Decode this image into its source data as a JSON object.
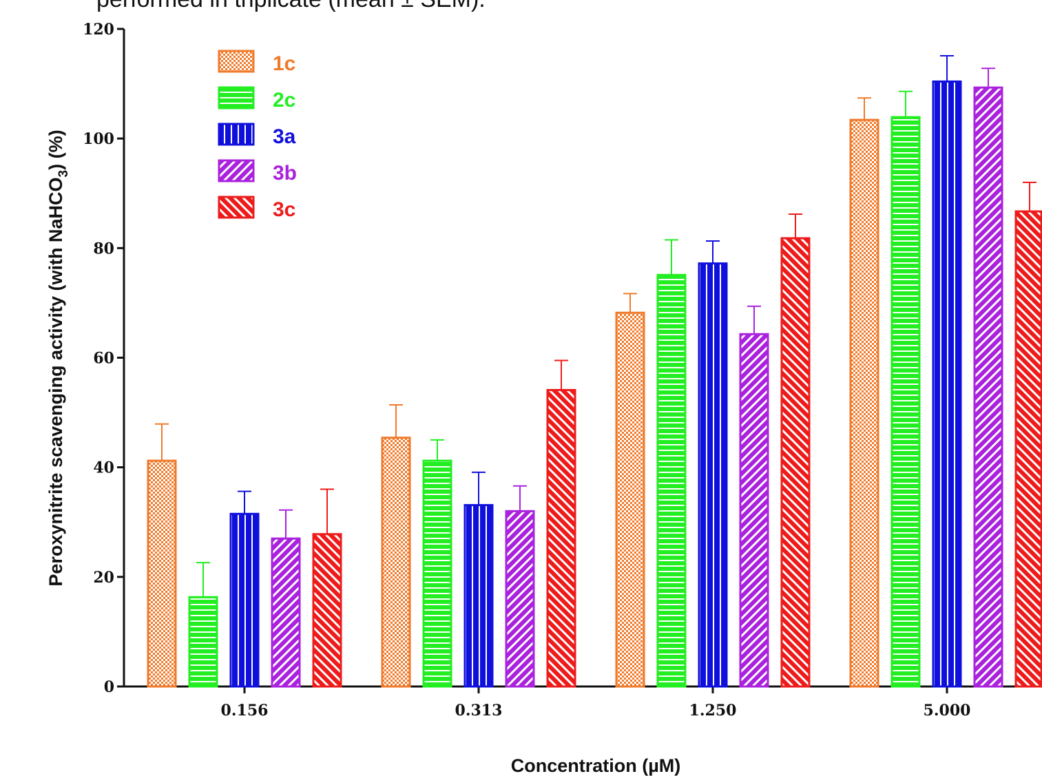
{
  "caption": "performed in triplicate (mean ± SEM).",
  "chart_data": {
    "type": "bar",
    "xlabel": "Concentration (µM)",
    "ylabel": "Peroxynitrite scavenging activity (with NaHCO",
    "ylabel_sub": "3",
    "ylabel_suffix": ") (%)",
    "ylim": [
      0,
      120
    ],
    "yticks": [
      0,
      20,
      40,
      60,
      80,
      100,
      120
    ],
    "categories": [
      "0.156",
      "0.313",
      "1.250",
      "5.000"
    ],
    "legend_position": "top-left",
    "grid": false,
    "series": [
      {
        "name": "1c",
        "color": "#f07a2a",
        "pattern": "dots",
        "values": [
          41.2,
          45.4,
          68.2,
          103.4
        ],
        "errors": [
          6.7,
          6.0,
          3.5,
          4.0
        ]
      },
      {
        "name": "2c",
        "color": "#22ee22",
        "pattern": "horizontal",
        "values": [
          16.3,
          41.2,
          75.1,
          103.9
        ],
        "errors": [
          6.3,
          3.8,
          6.4,
          4.7
        ]
      },
      {
        "name": "3a",
        "color": "#1010dd",
        "pattern": "vertical",
        "values": [
          31.5,
          33.1,
          77.2,
          110.4
        ],
        "errors": [
          4.1,
          6.0,
          4.1,
          4.7
        ]
      },
      {
        "name": "3b",
        "color": "#aa22dd",
        "pattern": "diag-up",
        "values": [
          27.0,
          32.0,
          64.3,
          109.3
        ],
        "errors": [
          5.2,
          4.6,
          5.1,
          3.5
        ]
      },
      {
        "name": "3c",
        "color": "#ee1b1b",
        "pattern": "diag-down",
        "values": [
          27.8,
          54.1,
          81.8,
          86.7
        ],
        "errors": [
          8.2,
          5.4,
          4.4,
          5.3
        ]
      }
    ]
  }
}
